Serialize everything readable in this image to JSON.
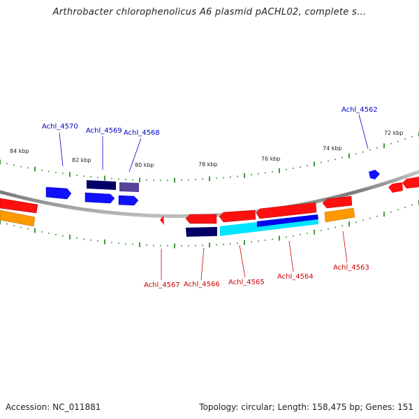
{
  "title": "Arthrobacter chlorophenolicus A6 plasmid pACHL02, complete s...",
  "footer": {
    "accession": "Accession: NC_011881",
    "summary": "Topology: circular; Length: 158,475 bp; Genes: 151"
  },
  "kbp_labels": [
    "84 kbp",
    "82 kbp",
    "80 kbp",
    "78 kbp",
    "76 kbp",
    "74 kbp",
    "72 kbp"
  ],
  "genes": [
    {
      "label": "Achl_4570",
      "strand": "+",
      "color": "#0000cc"
    },
    {
      "label": "Achl_4569",
      "strand": "+",
      "color": "#0000cc"
    },
    {
      "label": "Achl_4568",
      "strand": "+",
      "color": "#0000cc"
    },
    {
      "label": "Achl_4562",
      "strand": "+",
      "color": "#0000cc"
    },
    {
      "label": "Achl_4567",
      "strand": "-",
      "color": "#cc0000"
    },
    {
      "label": "Achl_4566",
      "strand": "-",
      "color": "#cc0000"
    },
    {
      "label": "Achl_4565",
      "strand": "-",
      "color": "#cc0000"
    },
    {
      "label": "Achl_4564",
      "strand": "-",
      "color": "#cc0000"
    },
    {
      "label": "Achl_4563",
      "strand": "-",
      "color": "#cc0000"
    }
  ],
  "colors": {
    "forward_gene": "#0000ff",
    "reverse_gene": "#ff0000",
    "cds_navy": "#000066",
    "cds_slate": "#554499",
    "cds_orange": "#ff9900",
    "cds_cyan": "#00e5ff",
    "tick_green": "#007700",
    "backbone": "#888888"
  }
}
